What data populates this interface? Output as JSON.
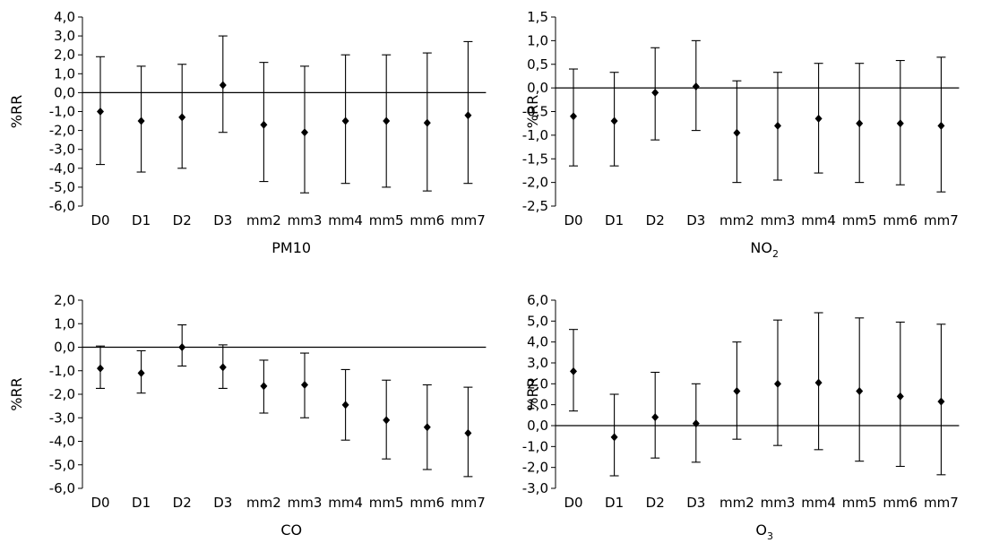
{
  "chart_data": [
    {
      "type": "scatter",
      "title": "PM10",
      "xlabel": "PM10",
      "ylabel": "%RR",
      "categories": [
        "D0",
        "D1",
        "D2",
        "D3",
        "mm2",
        "mm3",
        "mm4",
        "mm5",
        "mm6",
        "mm7"
      ],
      "ylim": [
        -6.0,
        4.0
      ],
      "yticks": [
        "-6,0",
        "-5,0",
        "-4,0",
        "-3,0",
        "-2,0",
        "-1,0",
        "0,0",
        "1,0",
        "2,0",
        "3,0",
        "4,0"
      ],
      "values": [
        -1.0,
        -1.5,
        -1.3,
        0.4,
        -1.7,
        -2.1,
        -1.5,
        -1.5,
        -1.6,
        -1.2
      ],
      "lower": [
        -3.8,
        -4.2,
        -4.0,
        -2.1,
        -4.7,
        -5.3,
        -4.8,
        -5.0,
        -5.2,
        -4.8
      ],
      "upper": [
        1.9,
        1.4,
        1.5,
        3.0,
        1.6,
        1.4,
        2.0,
        2.0,
        2.1,
        2.7
      ]
    },
    {
      "type": "scatter",
      "title": "NO2",
      "xlabel": "NO",
      "xlabel_sub": "2",
      "ylabel": "%RR",
      "categories": [
        "D0",
        "D1",
        "D2",
        "D3",
        "mm2",
        "mm3",
        "mm4",
        "mm5",
        "mm6",
        "mm7"
      ],
      "ylim": [
        -2.5,
        1.5
      ],
      "yticks": [
        "-2,5",
        "-2,0",
        "-1,5",
        "-1,0",
        "-0,5",
        "0,0",
        "0,5",
        "1,0",
        "1,5"
      ],
      "values": [
        -0.6,
        -0.7,
        -0.1,
        0.03,
        -0.95,
        -0.8,
        -0.65,
        -0.75,
        -0.75,
        -0.8
      ],
      "lower": [
        -1.65,
        -1.65,
        -1.1,
        -0.9,
        -2.0,
        -1.95,
        -1.8,
        -2.0,
        -2.05,
        -2.2
      ],
      "upper": [
        0.4,
        0.33,
        0.85,
        1.0,
        0.15,
        0.33,
        0.52,
        0.52,
        0.58,
        0.65
      ]
    },
    {
      "type": "scatter",
      "title": "CO",
      "xlabel": "CO",
      "ylabel": "%RR",
      "categories": [
        "D0",
        "D1",
        "D2",
        "D3",
        "mm2",
        "mm3",
        "mm4",
        "mm5",
        "mm6",
        "mm7"
      ],
      "ylim": [
        -6.0,
        2.0
      ],
      "yticks": [
        "-6,0",
        "-5,0",
        "-4,0",
        "-3,0",
        "-2,0",
        "-1,0",
        "0,0",
        "1,0",
        "2,0"
      ],
      "values": [
        -0.9,
        -1.1,
        0.0,
        -0.85,
        -1.65,
        -1.6,
        -2.45,
        -3.1,
        -3.4,
        -3.65
      ],
      "lower": [
        -1.75,
        -1.95,
        -0.8,
        -1.75,
        -2.8,
        -3.0,
        -3.95,
        -4.75,
        -5.2,
        -5.5
      ],
      "upper": [
        0.05,
        -0.15,
        0.95,
        0.1,
        -0.55,
        -0.25,
        -0.95,
        -1.4,
        -1.6,
        -1.7
      ]
    },
    {
      "type": "scatter",
      "title": "O3",
      "xlabel": "O",
      "xlabel_sub": "3",
      "ylabel": "%RR",
      "categories": [
        "D0",
        "D1",
        "D2",
        "D3",
        "mm2",
        "mm3",
        "mm4",
        "mm5",
        "mm6",
        "mm7"
      ],
      "ylim": [
        -3.0,
        6.0
      ],
      "yticks": [
        "-3,0",
        "-2,0",
        "-1,0",
        "0,0",
        "1,0",
        "2,0",
        "3,0",
        "4,0",
        "5,0",
        "6,0"
      ],
      "values": [
        2.6,
        -0.55,
        0.4,
        0.1,
        1.65,
        2.0,
        2.05,
        1.65,
        1.4,
        1.15
      ],
      "lower": [
        0.7,
        -2.4,
        -1.55,
        -1.75,
        -0.65,
        -0.95,
        -1.15,
        -1.7,
        -1.95,
        -2.35
      ],
      "upper": [
        4.6,
        1.5,
        2.55,
        2.0,
        4.0,
        5.05,
        5.4,
        5.15,
        4.95,
        4.85
      ]
    }
  ]
}
